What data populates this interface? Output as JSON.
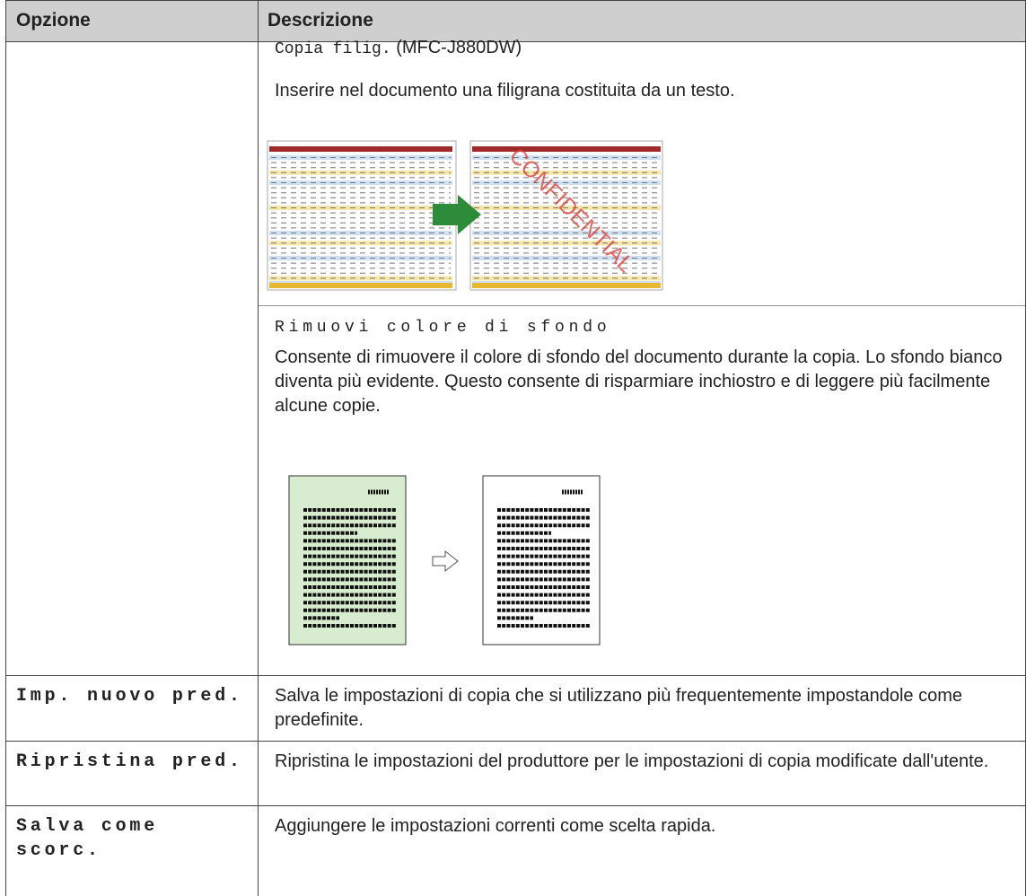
{
  "table": {
    "header": [
      "Opzione",
      "Descrizione"
    ],
    "rows": [
      {
        "sections": [
          {
            "setting": "Copia filig.",
            "note": "(MFC-J880DW)",
            "text": "Inserire nel documento una filigrana costituita da un testo.",
            "watermark": "CONFIDENTIAL"
          },
          {
            "setting": "Rimuovi colore di sfondo",
            "text": "Consente di rimuovere il colore di sfondo del documento durante la copia. Lo sfondo bianco diventa più evidente. Questo consente di risparmiare inchiostro e di leggere più facilmente alcune copie."
          }
        ]
      },
      {
        "option": "Imp. nuovo pred.",
        "description": "Salva le impostazioni di copia che si utilizzano più frequentemente impostandole come predefinite."
      },
      {
        "option": "Ripristina pred.",
        "description": "Ripristina le impostazioni del produttore per le impostazioni di copia modificate dall'utente."
      },
      {
        "option": "Salva come scorc.",
        "description": "Aggiungere le impostazioni correnti come scelta rapida."
      }
    ]
  }
}
